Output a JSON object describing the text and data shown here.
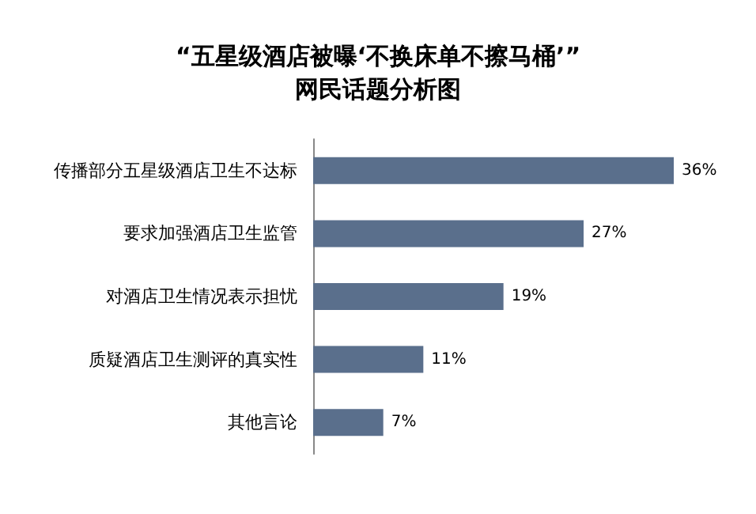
{
  "chart_data": {
    "type": "bar",
    "orientation": "horizontal",
    "title": "“五星级酒店被曝‘不换床单不擦马桶’”\n网民话题分析图",
    "categories": [
      "传播部分五星级酒店卫生不达标",
      "要求加强酒店卫生监管",
      "对酒店卫生情况表示担忧",
      "质疑酒店卫生测评的真实性",
      "其他言论"
    ],
    "values": [
      36,
      27,
      19,
      11,
      7
    ],
    "value_labels": [
      "36%",
      "27%",
      "19%",
      "11%",
      "7%"
    ],
    "color": "#5a6f8c"
  }
}
